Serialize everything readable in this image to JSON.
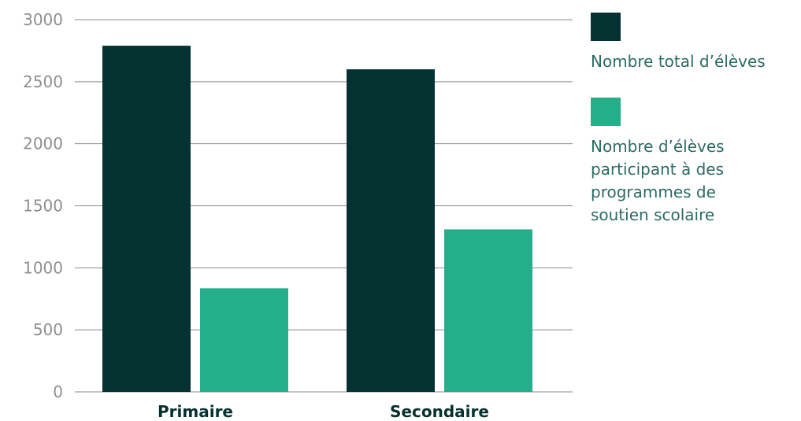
{
  "chart_data": {
    "type": "bar",
    "categories": [
      "Primaire",
      "Secondaire"
    ],
    "series": [
      {
        "name": "Nombre total d’élèves",
        "values": [
          2790,
          2600
        ],
        "color": "#053231"
      },
      {
        "name": "Nombre d’élèves participant à des programmes de soutien scolaire",
        "values": [
          835,
          1310
        ],
        "color": "#24ae8a"
      }
    ],
    "yticks": [
      0,
      500,
      1000,
      1500,
      2000,
      2500,
      3000
    ],
    "ylim": [
      0,
      3000
    ],
    "grid": true,
    "legend_position": "right"
  }
}
